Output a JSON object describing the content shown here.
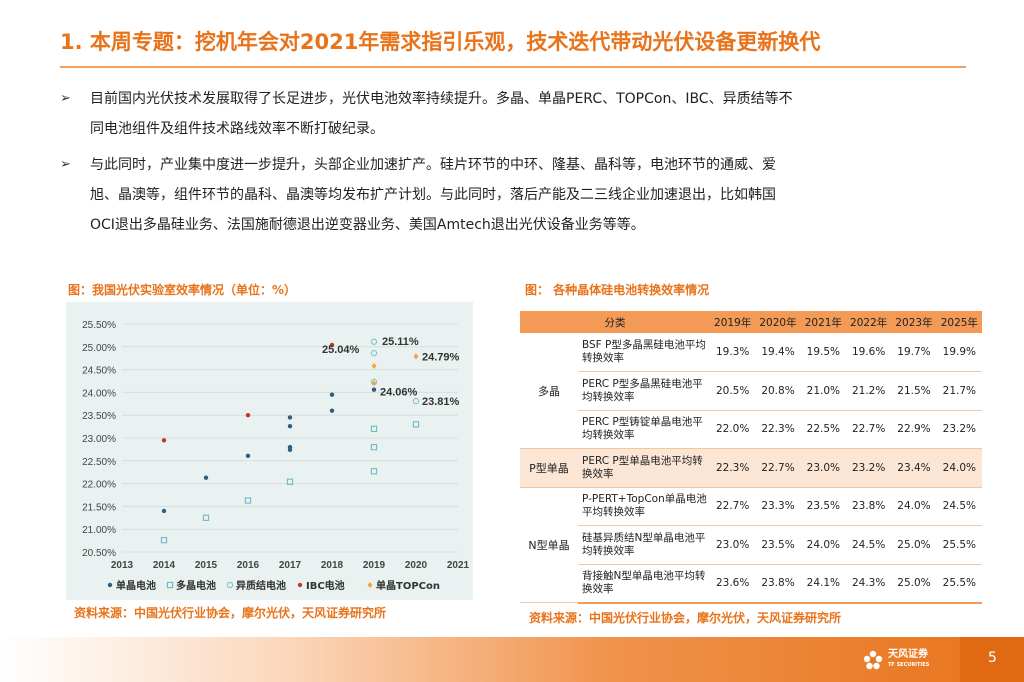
{
  "title": "1. 本周专题：挖机年会对2021年需求指引乐观，技术迭代带动光伏设备更新换代",
  "bullets": [
    {
      "mark": "➢",
      "text": "目前国内光伏技术发展取得了长足进步，光伏电池效率持续提升。多晶、单晶PERC、TOPCon、IBC、异质结等不\n同电池组件及组件技术路线效率不断打破纪录。"
    },
    {
      "mark": "➢",
      "text": "与此同时，产业集中度进一步提升，头部企业加速扩产。硅片环节的中环、隆基、晶科等，电池环节的通威、爱\n旭、晶澳等，组件环节的晶科、晶澳等均发布扩产计划。与此同时，落后产能及二三线企业加速退出，比如韩国\nOCI退出多晶硅业务、法国施耐德退出逆变器业务、美国Amtech退出光伏设备业务等等。"
    }
  ],
  "left_caption": "图：我国光伏实验室效率情况（单位：%）",
  "right_caption": "图： 各种晶体硅电池转换效率情况",
  "left_source": "资料来源：中国光伏行业协会，摩尔光伏，天风证券研究所",
  "right_source": "资料来源：中国光伏行业协会，摩尔光伏，天风证券研究所",
  "chart_data": {
    "type": "scatter",
    "title": "",
    "xlabel": "",
    "ylabel": "",
    "x_ticks": [
      "2013",
      "2014",
      "2015",
      "2016",
      "2017",
      "2018",
      "2019",
      "2020",
      "2021"
    ],
    "y_ticks": [
      "20.50%",
      "21.00%",
      "21.50%",
      "22.00%",
      "22.50%",
      "23.00%",
      "23.50%",
      "24.00%",
      "24.50%",
      "25.00%",
      "25.50%"
    ],
    "xlim": [
      2013,
      2021
    ],
    "ylim": [
      20.5,
      25.5
    ],
    "grid": true,
    "legend_position": "bottom",
    "series": [
      {
        "name": "单晶电池",
        "color": "#2e5f7f",
        "marker": "dot",
        "points": [
          [
            2014,
            21.4
          ],
          [
            2015,
            22.13
          ],
          [
            2016,
            22.61
          ],
          [
            2017,
            22.74
          ],
          [
            2017,
            22.8
          ],
          [
            2017,
            23.26
          ],
          [
            2017,
            23.45
          ],
          [
            2018,
            23.6
          ],
          [
            2018,
            23.95
          ],
          [
            2019,
            24.06
          ]
        ]
      },
      {
        "name": "多晶电池",
        "color": "#6fb7c9",
        "marker": "hollow-square",
        "points": [
          [
            2014,
            20.76
          ],
          [
            2015,
            21.25
          ],
          [
            2016,
            21.63
          ],
          [
            2017,
            22.04
          ],
          [
            2019,
            22.27
          ],
          [
            2019,
            22.8
          ],
          [
            2019,
            23.2
          ],
          [
            2020,
            23.3
          ]
        ]
      },
      {
        "name": "异质结电池",
        "color": "#7fc2d3",
        "marker": "hollow-circle",
        "points": [
          [
            2019,
            24.23
          ],
          [
            2019,
            24.86
          ],
          [
            2019,
            25.11
          ],
          [
            2020,
            23.81
          ]
        ]
      },
      {
        "name": "IBC电池",
        "color": "#c0392b",
        "marker": "dot",
        "points": [
          [
            2014,
            22.95
          ],
          [
            2016,
            23.5
          ],
          [
            2018,
            25.04
          ]
        ]
      },
      {
        "name": "单晶TOPCon",
        "color": "#f0a540",
        "marker": "diamond",
        "points": [
          [
            2019,
            24.58
          ],
          [
            2019,
            24.2
          ],
          [
            2020,
            24.79
          ]
        ]
      }
    ],
    "annotations": [
      {
        "text": "25.11%",
        "x": 2019,
        "y": 25.11
      },
      {
        "text": "25.04%",
        "x": 2018,
        "y": 25.04
      },
      {
        "text": "24.79%",
        "x": 2020,
        "y": 24.79
      },
      {
        "text": "24.06%",
        "x": 2019,
        "y": 24.06
      },
      {
        "text": "23.81%",
        "x": 2020,
        "y": 23.81
      }
    ]
  },
  "table": {
    "headers": [
      "分类",
      "2019年",
      "2020年",
      "2021年",
      "2022年",
      "2023年",
      "2025年"
    ],
    "groups": [
      {
        "group": "多晶",
        "rows": [
          {
            "desc": "BSF P型多晶黑硅电池平均转换效率",
            "values": [
              "19.3%",
              "19.4%",
              "19.5%",
              "19.6%",
              "19.7%",
              "19.9%"
            ]
          },
          {
            "desc": "PERC P型多晶黑硅电池平均转换效率",
            "values": [
              "20.5%",
              "20.8%",
              "21.0%",
              "21.2%",
              "21.5%",
              "21.7%"
            ]
          },
          {
            "desc": "PERC P型铸锭单晶电池平均转换效率",
            "values": [
              "22.0%",
              "22.3%",
              "22.5%",
              "22.7%",
              "22.9%",
              "23.2%"
            ]
          }
        ]
      },
      {
        "group": "P型单晶",
        "highlight": true,
        "rows": [
          {
            "desc": "PERC P型单晶电池平均转换效率",
            "values": [
              "22.3%",
              "22.7%",
              "23.0%",
              "23.2%",
              "23.4%",
              "24.0%"
            ]
          }
        ]
      },
      {
        "group": "N型单晶",
        "rows": [
          {
            "desc": "P-PERT+TopCon单晶电池平均转换效率",
            "values": [
              "22.7%",
              "23.3%",
              "23.5%",
              "23.8%",
              "24.0%",
              "24.5%"
            ]
          },
          {
            "desc": "硅基异质结N型单晶电池平均转换效率",
            "values": [
              "23.0%",
              "23.5%",
              "24.0%",
              "24.5%",
              "25.0%",
              "25.5%"
            ]
          },
          {
            "desc": "背接触N型单晶电池平均转换效率",
            "values": [
              "23.6%",
              "23.8%",
              "24.1%",
              "24.3%",
              "25.0%",
              "25.5%"
            ]
          }
        ]
      }
    ]
  },
  "footer": {
    "logo_text": "天风证券",
    "logo_sub": "TF SECURITIES",
    "page_number": "5",
    "colors": {
      "accent": "#e8731b",
      "light": "#f29a56"
    }
  }
}
